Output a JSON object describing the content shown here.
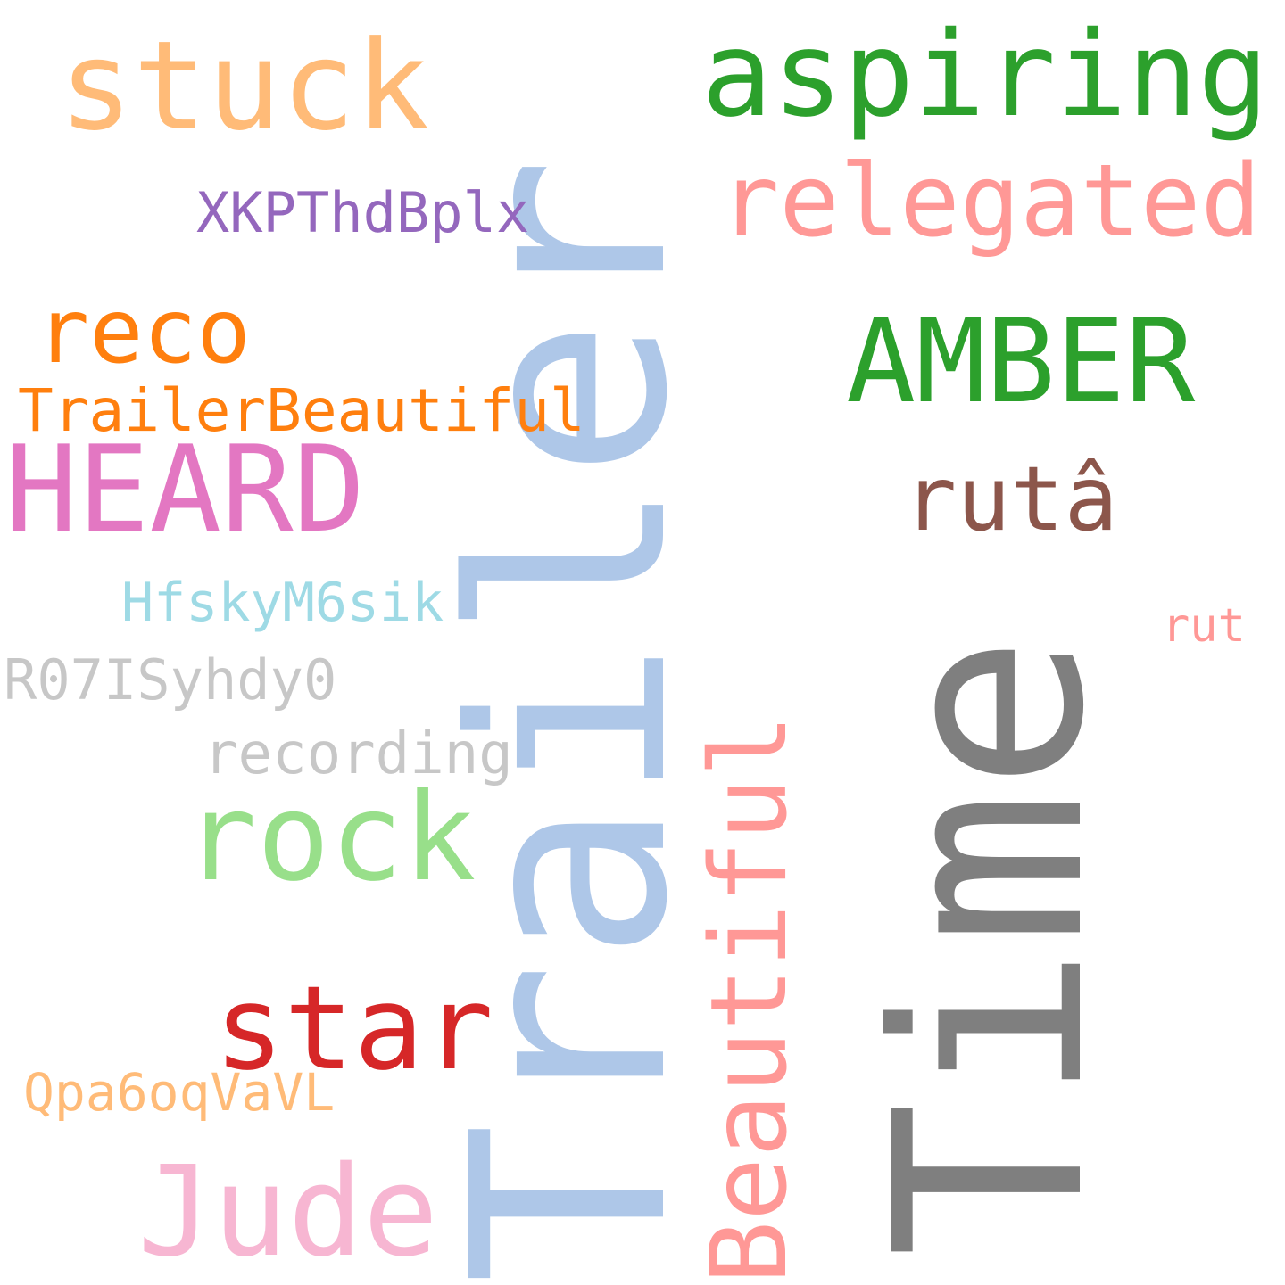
{
  "words": {
    "trailer": {
      "text": "Trailer",
      "color": "#aec7e8"
    },
    "time": {
      "text": "Time",
      "color": "#7f7f7f"
    },
    "beautiful": {
      "text": "Beautiful",
      "color": "#ff9896"
    },
    "stuck": {
      "text": "stuck",
      "color": "#ffbb78"
    },
    "aspiring": {
      "text": "aspiring",
      "color": "#2ca02c"
    },
    "relegated": {
      "text": "relegated",
      "color": "#ff9896"
    },
    "xkpthdbplx": {
      "text": "XKPThdBplx",
      "color": "#9467bd"
    },
    "reco": {
      "text": "reco",
      "color": "#ff7f0e"
    },
    "amber": {
      "text": "AMBER",
      "color": "#2ca02c"
    },
    "trailerbeautiful": {
      "text": "TrailerBeautiful",
      "color": "#ff7f0e"
    },
    "heard": {
      "text": "HEARD",
      "color": "#e377c2"
    },
    "ruta": {
      "text": "rutâ",
      "color": "#8c564b"
    },
    "hfskym6sik": {
      "text": "HfskyM6sik",
      "color": "#9edae5"
    },
    "rut": {
      "text": "rut",
      "color": "#ff9896"
    },
    "r07isyhdy0": {
      "text": "R07ISyhdy0",
      "color": "#c7c7c7"
    },
    "recording": {
      "text": "recording",
      "color": "#c7c7c7"
    },
    "rock": {
      "text": "rock",
      "color": "#98df8a"
    },
    "star": {
      "text": "star",
      "color": "#d62728"
    },
    "qpa6oqvavl": {
      "text": "Qpa6oqVaVL",
      "color": "#ffbb78"
    },
    "jude": {
      "text": "Jude",
      "color": "#f7b6d2"
    }
  }
}
